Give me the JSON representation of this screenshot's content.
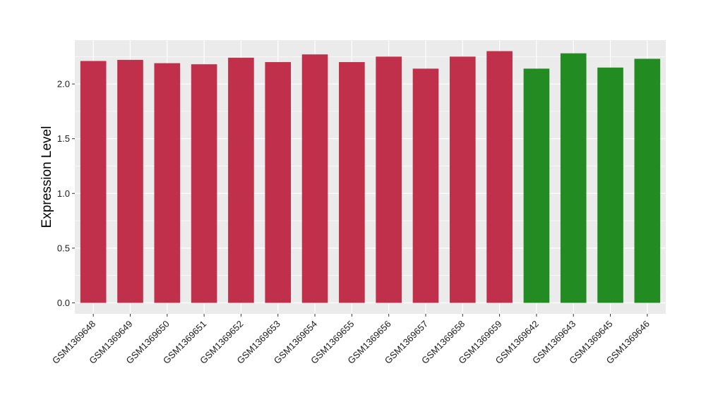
{
  "chart_data": {
    "type": "bar",
    "categories": [
      "GSM1369648",
      "GSM1369649",
      "GSM1369650",
      "GSM1369651",
      "GSM1369652",
      "GSM1369653",
      "GSM1369654",
      "GSM1369655",
      "GSM1369656",
      "GSM1369657",
      "GSM1369658",
      "GSM1369659",
      "GSM1369642",
      "GSM1369643",
      "GSM1369645",
      "GSM1369646"
    ],
    "values": [
      2.21,
      2.22,
      2.19,
      2.18,
      2.24,
      2.2,
      2.27,
      2.2,
      2.25,
      2.14,
      2.25,
      2.3,
      2.14,
      2.28,
      2.15,
      2.23
    ],
    "bar_colors": [
      "#c0304a",
      "#c0304a",
      "#c0304a",
      "#c0304a",
      "#c0304a",
      "#c0304a",
      "#c0304a",
      "#c0304a",
      "#c0304a",
      "#c0304a",
      "#c0304a",
      "#c0304a",
      "#228b22",
      "#228b22",
      "#228b22",
      "#228b22"
    ],
    "title": "",
    "xlabel": "",
    "ylabel": "Expression Level",
    "ylim": [
      -0.1,
      2.4
    ],
    "yticks": [
      0.0,
      0.5,
      1.0,
      1.5,
      2.0
    ],
    "ytick_labels": [
      "0.0",
      "0.5",
      "1.0",
      "1.5",
      "2.0"
    ],
    "grid": true,
    "legend": "none",
    "panel_background": "#ebebeb",
    "grid_color": "#ffffff"
  }
}
